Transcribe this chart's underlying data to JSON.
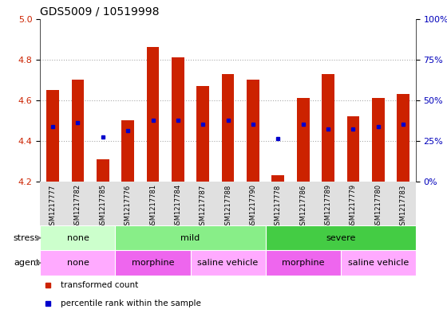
{
  "title": "GDS5009 / 10519998",
  "samples": [
    "GSM1217777",
    "GSM1217782",
    "GSM1217785",
    "GSM1217776",
    "GSM1217781",
    "GSM1217784",
    "GSM1217787",
    "GSM1217788",
    "GSM1217790",
    "GSM1217778",
    "GSM1217786",
    "GSM1217789",
    "GSM1217779",
    "GSM1217780",
    "GSM1217783"
  ],
  "bar_values": [
    4.65,
    4.7,
    4.31,
    4.5,
    4.86,
    4.81,
    4.67,
    4.73,
    4.7,
    4.23,
    4.61,
    4.73,
    4.52,
    4.61,
    4.63
  ],
  "blue_dot_values": [
    4.47,
    4.49,
    4.42,
    4.45,
    4.5,
    4.5,
    4.48,
    4.5,
    4.48,
    4.41,
    4.48,
    4.46,
    4.46,
    4.47,
    4.48
  ],
  "ylim": [
    4.2,
    5.0
  ],
  "yticks": [
    4.2,
    4.4,
    4.6,
    4.8,
    5.0
  ],
  "right_yticks": [
    0,
    25,
    50,
    75,
    100
  ],
  "right_ytick_labels": [
    "0%",
    "25%",
    "50%",
    "75%",
    "100%"
  ],
  "bar_color": "#cc2200",
  "dot_color": "#0000cc",
  "bar_bottom": 4.2,
  "stress_groups": [
    {
      "label": "none",
      "start": 0,
      "end": 3,
      "color": "#ccffcc"
    },
    {
      "label": "mild",
      "start": 3,
      "end": 9,
      "color": "#88ee88"
    },
    {
      "label": "severe",
      "start": 9,
      "end": 15,
      "color": "#44cc44"
    }
  ],
  "agent_groups": [
    {
      "label": "none",
      "start": 0,
      "end": 3,
      "color": "#ffaaff"
    },
    {
      "label": "morphine",
      "start": 3,
      "end": 6,
      "color": "#ee66ee"
    },
    {
      "label": "saline vehicle",
      "start": 6,
      "end": 9,
      "color": "#ffaaff"
    },
    {
      "label": "morphine",
      "start": 9,
      "end": 12,
      "color": "#ee66ee"
    },
    {
      "label": "saline vehicle",
      "start": 12,
      "end": 15,
      "color": "#ffaaff"
    }
  ],
  "legend_items": [
    {
      "label": "transformed count",
      "color": "#cc2200",
      "marker": "s"
    },
    {
      "label": "percentile rank within the sample",
      "color": "#0000cc",
      "marker": "s"
    }
  ],
  "grid_color": "#aaaaaa",
  "background_color": "#ffffff",
  "axis_label_color_left": "#cc2200",
  "axis_label_color_right": "#0000bb"
}
